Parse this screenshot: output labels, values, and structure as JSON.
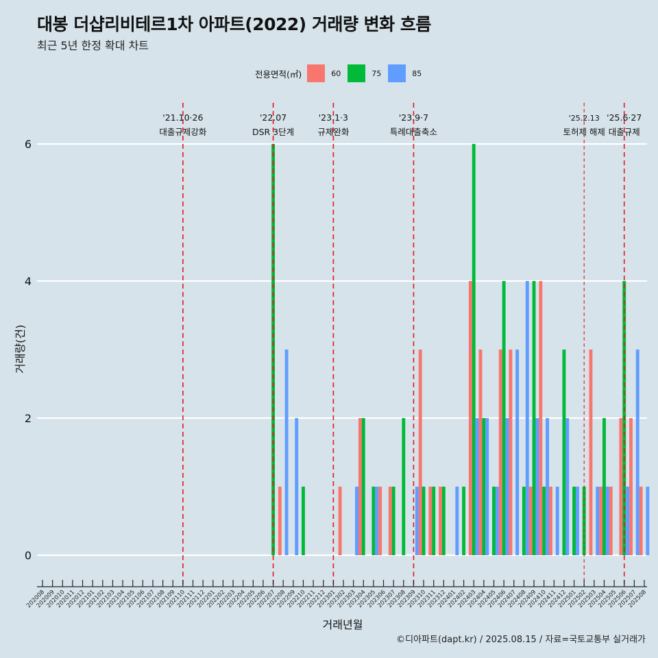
{
  "chart_data": {
    "type": "bar",
    "title": "대봉 더샵리비테르1차 아파트(2022) 거래량 변화 흐름",
    "subtitle": "최근 5년 한정 확대 차트",
    "xlabel": "거래년월",
    "ylabel": "거래량(건)",
    "caption": "©디아파트(dapt.kr) / 2025.08.15 / 자료=국토교통부 실거래가",
    "legend_title": "전용면적(㎡)",
    "legend_position": "top-center",
    "ylim": [
      -0.4,
      6.6
    ],
    "yticks": [
      0,
      2,
      4,
      6
    ],
    "grid": "horizontal",
    "categories": [
      "202008",
      "202009",
      "202010",
      "202011",
      "202012",
      "202101",
      "202102",
      "202103",
      "202104",
      "202105",
      "202106",
      "202107",
      "202108",
      "202109",
      "202110",
      "202111",
      "202112",
      "202201",
      "202202",
      "202203",
      "202204",
      "202205",
      "202206",
      "202207",
      "202208",
      "202209",
      "202210",
      "202211",
      "202212",
      "202301",
      "202302",
      "202303",
      "202304",
      "202305",
      "202306",
      "202307",
      "202308",
      "202309",
      "202310",
      "202311",
      "202312",
      "202401",
      "202402",
      "202403",
      "202404",
      "202405",
      "202406",
      "202407",
      "202408",
      "202409",
      "202410",
      "202411",
      "202412",
      "202501",
      "202502",
      "202503",
      "202504",
      "202505",
      "202506",
      "202507",
      "202508"
    ],
    "series": [
      {
        "name": "60",
        "color": "#f8766d",
        "values": [
          0,
          0,
          0,
          0,
          0,
          0,
          0,
          0,
          0,
          0,
          0,
          0,
          0,
          0,
          0,
          0,
          0,
          0,
          0,
          0,
          0,
          0,
          0,
          0,
          1,
          0,
          0,
          0,
          0,
          0,
          1,
          0,
          2,
          0,
          1,
          1,
          0,
          0,
          3,
          1,
          1,
          0,
          0,
          4,
          3,
          0,
          3,
          3,
          0,
          1,
          4,
          1,
          0,
          0,
          0,
          3,
          1,
          1,
          2,
          2,
          1
        ]
      },
      {
        "name": "75",
        "color": "#00ba38",
        "values": [
          0,
          0,
          0,
          0,
          0,
          0,
          0,
          0,
          0,
          0,
          0,
          0,
          0,
          0,
          0,
          0,
          0,
          0,
          0,
          0,
          0,
          0,
          0,
          6,
          0,
          0,
          1,
          0,
          0,
          0,
          0,
          0,
          2,
          1,
          0,
          1,
          2,
          0,
          1,
          1,
          1,
          0,
          1,
          6,
          2,
          1,
          4,
          0,
          1,
          4,
          1,
          0,
          3,
          1,
          1,
          0,
          2,
          0,
          4,
          0,
          0
        ]
      },
      {
        "name": "85",
        "color": "#619cff",
        "values": [
          0,
          0,
          0,
          0,
          0,
          0,
          0,
          0,
          0,
          0,
          0,
          0,
          0,
          0,
          0,
          0,
          0,
          0,
          0,
          0,
          0,
          0,
          0,
          0,
          3,
          2,
          0,
          0,
          0,
          0,
          0,
          1,
          0,
          1,
          0,
          0,
          0,
          1,
          0,
          0,
          0,
          1,
          0,
          2,
          2,
          1,
          2,
          3,
          4,
          2,
          2,
          1,
          2,
          1,
          0,
          1,
          1,
          0,
          1,
          3,
          1
        ]
      }
    ],
    "events": [
      {
        "category": "202110",
        "date": "'21.10·26",
        "label": "대출규제강화",
        "style": "bold"
      },
      {
        "category": "202207",
        "date": "'22.07",
        "label": "DSR 3단계",
        "style": "bold"
      },
      {
        "category": "202301",
        "date": "'23.1·3",
        "label": "규제완화",
        "style": "bold"
      },
      {
        "category": "202309",
        "date": "'23.9·7",
        "label": "특례대출축소",
        "style": "bold"
      },
      {
        "category": "202502",
        "date": "'25.2.13",
        "label": "토허제 해제",
        "style": "thin"
      },
      {
        "category": "202506",
        "date": "'25.6·27",
        "label": "대출규제",
        "style": "bold"
      }
    ]
  }
}
